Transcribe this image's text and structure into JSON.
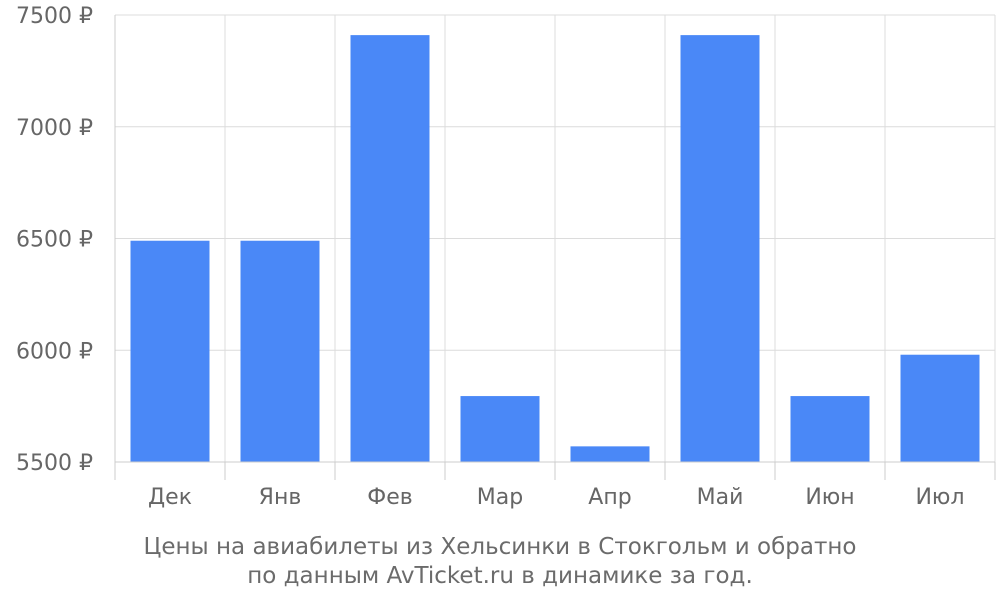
{
  "chart_data": {
    "type": "bar",
    "categories": [
      "Дек",
      "Янв",
      "Фев",
      "Мар",
      "Апр",
      "Май",
      "Июн",
      "Июл"
    ],
    "values": [
      6490,
      6490,
      7410,
      5795,
      5570,
      7410,
      5795,
      5980
    ],
    "y_ticks": [
      "5500 ₽",
      "6000 ₽",
      "6500 ₽",
      "7000 ₽",
      "7500 ₽"
    ],
    "y_tick_values": [
      5500,
      6000,
      6500,
      7000,
      7500
    ],
    "ylim": [
      5500,
      7500
    ],
    "grid": true,
    "bar_color": "#4a88f7"
  },
  "caption": {
    "line1": "Цены на авиабилеты из Хельсинки в Стокгольм и обратно",
    "line2": "по данным AvTicket.ru в динамике за год."
  }
}
